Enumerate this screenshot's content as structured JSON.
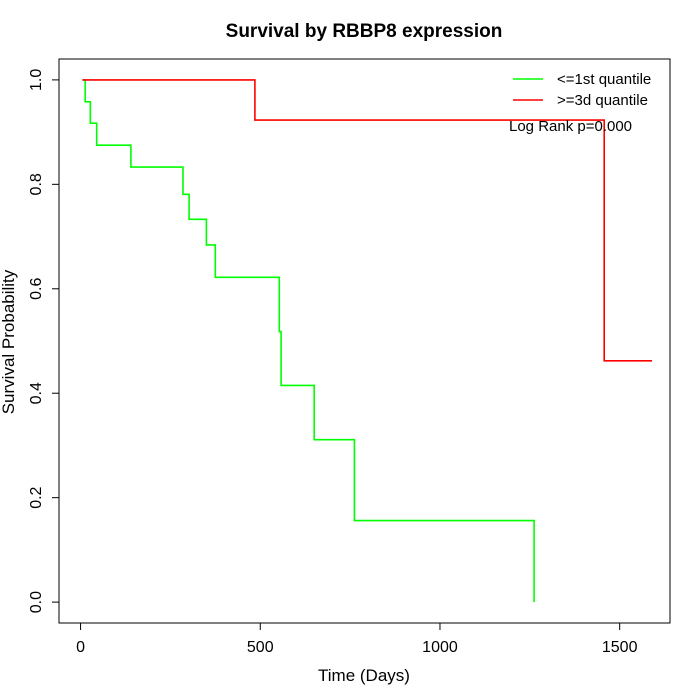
{
  "chart_data": {
    "type": "line",
    "step": true,
    "title": "Survival by RBBP8 expression",
    "xlabel": "Time (Days)",
    "ylabel": "Survival Probability",
    "xlim": [
      -60,
      1640
    ],
    "ylim": [
      -0.04,
      1.04
    ],
    "xticks": [
      0,
      500,
      1000,
      1500
    ],
    "yticks": [
      0.0,
      0.2,
      0.4,
      0.6,
      0.8,
      1.0
    ],
    "ytick_labels": [
      "0.0",
      "0.2",
      "0.4",
      "0.6",
      "0.8",
      "1.0"
    ],
    "grid": false,
    "legend_position": "top-right",
    "annotation": "Log Rank p=0.000",
    "series": [
      {
        "name": "<=1st quantile",
        "color": "#00ff00",
        "x": [
          5,
          13,
          13,
          27,
          27,
          45,
          45,
          140,
          140,
          285,
          285,
          302,
          302,
          350,
          350,
          375,
          375,
          553,
          553,
          558,
          558,
          650,
          650,
          762,
          762,
          1262,
          1262
        ],
        "y": [
          1.0,
          1.0,
          0.958,
          0.958,
          0.917,
          0.917,
          0.875,
          0.875,
          0.833,
          0.833,
          0.781,
          0.781,
          0.733,
          0.733,
          0.684,
          0.684,
          0.622,
          0.622,
          0.518,
          0.518,
          0.415,
          0.415,
          0.311,
          0.311,
          0.156,
          0.156,
          0.0
        ]
      },
      {
        "name": ">=3d quantile",
        "color": "#ff0000",
        "x": [
          5,
          485,
          485,
          1457,
          1457,
          1590
        ],
        "y": [
          1.0,
          1.0,
          0.923,
          0.923,
          0.462,
          0.462
        ]
      }
    ]
  }
}
